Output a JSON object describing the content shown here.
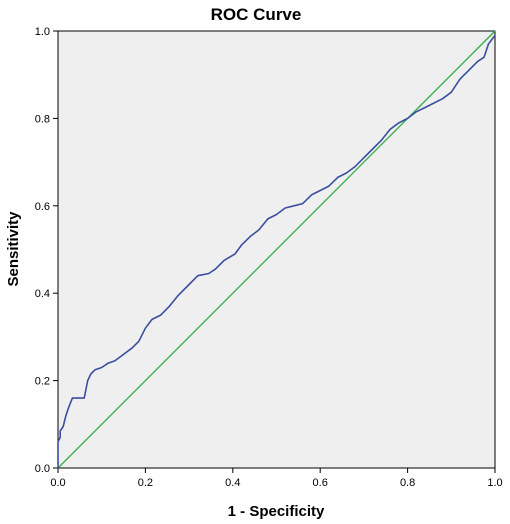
{
  "chart_data": {
    "type": "line",
    "title": "ROC Curve",
    "xlabel": "1 - Specificity",
    "ylabel": "Sensitivity",
    "xlim": [
      0,
      1
    ],
    "ylim": [
      0,
      1
    ],
    "x_ticks": [
      "0.0",
      "0.2",
      "0.4",
      "0.6",
      "0.8",
      "1.0"
    ],
    "y_ticks": [
      "0.0",
      "0.2",
      "0.4",
      "0.6",
      "0.8",
      "1.0"
    ],
    "grid": false,
    "legend": "none",
    "series": [
      {
        "color": "#3b4fa0",
        "x": [
          0.0,
          0.0,
          0.005,
          0.005,
          0.012,
          0.018,
          0.025,
          0.033,
          0.045,
          0.06,
          0.068,
          0.075,
          0.085,
          0.1,
          0.115,
          0.13,
          0.15,
          0.17,
          0.185,
          0.2,
          0.215,
          0.235,
          0.255,
          0.275,
          0.3,
          0.32,
          0.345,
          0.36,
          0.38,
          0.405,
          0.42,
          0.44,
          0.46,
          0.48,
          0.5,
          0.52,
          0.54,
          0.56,
          0.58,
          0.6,
          0.62,
          0.64,
          0.66,
          0.68,
          0.7,
          0.72,
          0.74,
          0.76,
          0.78,
          0.8,
          0.82,
          0.84,
          0.86,
          0.88,
          0.9,
          0.92,
          0.94,
          0.96,
          0.975,
          0.985,
          1.0
        ],
        "y": [
          0.0,
          0.06,
          0.07,
          0.085,
          0.095,
          0.12,
          0.14,
          0.16,
          0.16,
          0.16,
          0.2,
          0.215,
          0.225,
          0.23,
          0.24,
          0.245,
          0.26,
          0.275,
          0.29,
          0.32,
          0.34,
          0.35,
          0.37,
          0.395,
          0.42,
          0.44,
          0.445,
          0.455,
          0.475,
          0.49,
          0.51,
          0.53,
          0.545,
          0.57,
          0.58,
          0.595,
          0.6,
          0.605,
          0.625,
          0.635,
          0.645,
          0.665,
          0.675,
          0.69,
          0.71,
          0.73,
          0.75,
          0.775,
          0.79,
          0.8,
          0.815,
          0.825,
          0.835,
          0.845,
          0.86,
          0.89,
          0.91,
          0.93,
          0.94,
          0.97,
          0.99
        ]
      },
      {
        "color": "#2eae43",
        "x": [
          0,
          1
        ],
        "y": [
          0,
          1
        ]
      }
    ]
  }
}
